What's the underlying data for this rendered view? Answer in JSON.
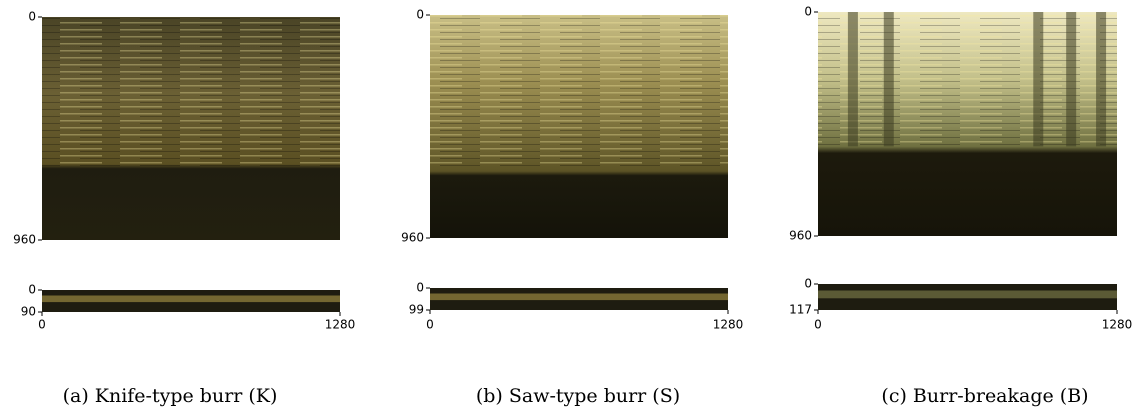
{
  "panels": [
    {
      "caption": "(a) Knife-type burr (K)",
      "image": {
        "yticks": [
          0,
          960
        ]
      },
      "strip": {
        "yticks": [
          0,
          90
        ],
        "xticks": [
          0,
          1280
        ]
      }
    },
    {
      "caption": "(b) Saw-type burr (S)",
      "image": {
        "yticks": [
          0,
          960
        ]
      },
      "strip": {
        "yticks": [
          0,
          99
        ],
        "xticks": [
          0,
          1280
        ]
      }
    },
    {
      "caption": "(c) Burr-breakage (B)",
      "image": {
        "yticks": [
          0,
          960
        ]
      },
      "strip": {
        "yticks": [
          0,
          117
        ],
        "xticks": [
          0,
          1280
        ]
      }
    }
  ]
}
